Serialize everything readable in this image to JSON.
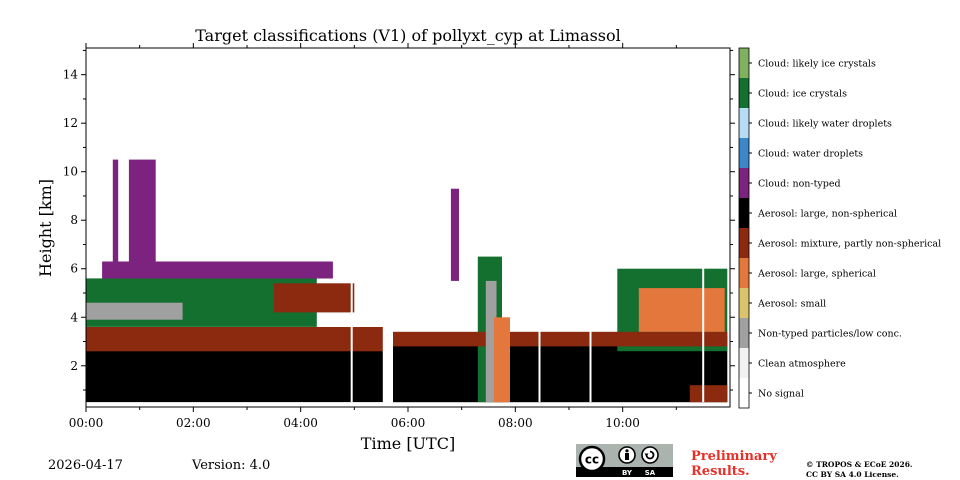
{
  "chart_data": {
    "type": "heatmap",
    "title": "Target classifications (V1) of pollyxt_cyp at Limassol",
    "xlabel": "Time [UTC]",
    "ylabel": "Height [km]",
    "xlim": [
      0,
      12
    ],
    "ylim": [
      0.3,
      15.1
    ],
    "xticks": [
      {
        "value": 0,
        "label": "00:00"
      },
      {
        "value": 2,
        "label": "02:00"
      },
      {
        "value": 4,
        "label": "04:00"
      },
      {
        "value": 6,
        "label": "06:00"
      },
      {
        "value": 8,
        "label": "08:00"
      },
      {
        "value": 10,
        "label": "10:00"
      }
    ],
    "yticks": [
      {
        "value": 2,
        "label": "2"
      },
      {
        "value": 4,
        "label": "4"
      },
      {
        "value": 6,
        "label": "6"
      },
      {
        "value": 8,
        "label": "8"
      },
      {
        "value": 10,
        "label": "10"
      },
      {
        "value": 12,
        "label": "12"
      },
      {
        "value": 14,
        "label": "14"
      }
    ],
    "legend": [
      {
        "label": "Cloud: likely ice crystals",
        "color": "#7fb160"
      },
      {
        "label": "Cloud: ice crystals",
        "color": "#13702f"
      },
      {
        "label": "Cloud: likely water droplets",
        "color": "#b4dcf5"
      },
      {
        "label": "Cloud: water droplets",
        "color": "#3c87c8"
      },
      {
        "label": "Cloud: non-typed",
        "color": "#7b237e"
      },
      {
        "label": "Aerosol: large, non-spherical",
        "color": "#000000"
      },
      {
        "label": "Aerosol: mixture, partly non-spherical",
        "color": "#8b2a0e"
      },
      {
        "label": "Aerosol: large, spherical",
        "color": "#e4773c"
      },
      {
        "label": "Aerosol: small",
        "color": "#d9c46c"
      },
      {
        "label": "Non-typed particles/low conc.",
        "color": "#a0a0a0"
      },
      {
        "label": "Clean atmosphere",
        "color": "#f2f2f2"
      },
      {
        "label": "No signal",
        "color": "#ffffff"
      }
    ],
    "layers": [
      {
        "class": "Aerosol: large, non-spherical",
        "segments": [
          {
            "t0": 0.0,
            "t1": 5.55,
            "h0": 0.5,
            "h1": 3.4
          },
          {
            "t0": 5.72,
            "t1": 11.95,
            "h0": 0.5,
            "h1": 3.2
          }
        ]
      },
      {
        "class": "Cloud: ice crystals",
        "segments": [
          {
            "t0": 0.0,
            "t1": 4.3,
            "h0": 3.6,
            "h1": 5.6
          },
          {
            "t0": 7.3,
            "t1": 7.75,
            "h0": 0.5,
            "h1": 6.5
          },
          {
            "t0": 9.9,
            "t1": 11.95,
            "h0": 2.6,
            "h1": 6.0
          }
        ]
      },
      {
        "class": "Aerosol: mixture, partly non-spherical",
        "segments": [
          {
            "t0": 0.0,
            "t1": 5.55,
            "h0": 2.6,
            "h1": 3.6
          },
          {
            "t0": 5.72,
            "t1": 11.95,
            "h0": 2.8,
            "h1": 3.4
          },
          {
            "t0": 3.5,
            "t1": 5.0,
            "h0": 4.2,
            "h1": 5.4
          },
          {
            "t0": 11.25,
            "t1": 11.95,
            "h0": 0.5,
            "h1": 1.2
          }
        ]
      },
      {
        "class": "Cloud: non-typed",
        "segments": [
          {
            "t0": 0.3,
            "t1": 4.6,
            "h0": 5.6,
            "h1": 6.3
          },
          {
            "t0": 0.5,
            "t1": 0.6,
            "h0": 6.3,
            "h1": 10.5
          },
          {
            "t0": 0.8,
            "t1": 1.3,
            "h0": 6.3,
            "h1": 10.5
          },
          {
            "t0": 6.8,
            "t1": 6.95,
            "h0": 5.5,
            "h1": 9.3
          }
        ]
      },
      {
        "class": "Non-typed particles/low conc.",
        "segments": [
          {
            "t0": 0.0,
            "t1": 1.8,
            "h0": 3.9,
            "h1": 4.6
          },
          {
            "t0": 7.45,
            "t1": 7.65,
            "h0": 0.5,
            "h1": 5.5
          }
        ]
      },
      {
        "class": "Aerosol: large, spherical",
        "segments": [
          {
            "t0": 7.6,
            "t1": 7.9,
            "h0": 0.5,
            "h1": 4.0
          },
          {
            "t0": 10.3,
            "t1": 11.9,
            "h0": 3.4,
            "h1": 5.2
          }
        ]
      }
    ],
    "gaps_utc": [
      4.95,
      5.55,
      8.45,
      9.4,
      11.5
    ]
  },
  "footer": {
    "date": "2026-04-17",
    "version": "Version: 4.0",
    "preliminary_line1": "Preliminary",
    "preliminary_line2": "Results.",
    "copyright_line1": "© TROPOS & ECoE 2026.",
    "copyright_line2": "CC BY SA 4.0 License.",
    "badge_cc": "cc",
    "badge_by": "BY",
    "badge_sa": "SA"
  }
}
